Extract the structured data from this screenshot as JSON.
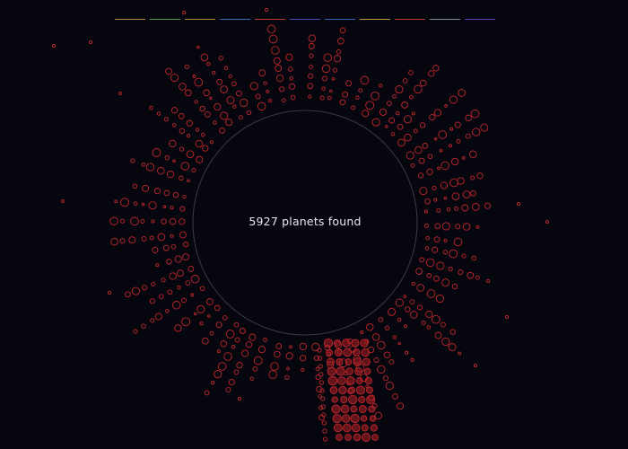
{
  "summary": {
    "label": "5927 planets found"
  },
  "filters": [
    {
      "color": "#b8873a"
    },
    {
      "color": "#4f9a4f"
    },
    {
      "color": "#a8842e"
    },
    {
      "color": "#3f66b8"
    },
    {
      "color": "#b33a3a"
    },
    {
      "color": "#4a4ab8"
    },
    {
      "color": "#3a5fb8"
    },
    {
      "color": "#b89a3a"
    },
    {
      "color": "#b83a3a"
    },
    {
      "color": "#7a8a9a"
    },
    {
      "color": "#6a3ab8"
    }
  ],
  "colors": {
    "background": "#06060f",
    "planet_stroke": "#c0282c",
    "planet_fill_highlight": "#b32025",
    "ring": "#3a3a48"
  }
}
